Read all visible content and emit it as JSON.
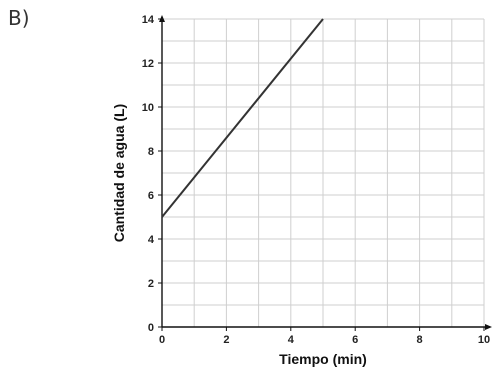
{
  "panel_label": "B)",
  "chart_data": {
    "type": "line",
    "title": "",
    "xlabel": "Tiempo (min)",
    "ylabel": "Cantidad de agua (L)",
    "xlim": [
      0,
      10
    ],
    "ylim": [
      0,
      14
    ],
    "x_ticks": [
      0,
      2,
      4,
      6,
      8,
      10
    ],
    "y_ticks": [
      0,
      2,
      4,
      6,
      8,
      10,
      12,
      14
    ],
    "x_tick_labels": [
      "0",
      "2",
      "4",
      "6",
      "8",
      "10"
    ],
    "y_tick_labels": [
      "0",
      "2",
      "4",
      "6",
      "8",
      "10",
      "12",
      "14"
    ],
    "grid": true,
    "series": [
      {
        "x": [
          0,
          5
        ],
        "y": [
          5,
          14
        ]
      }
    ],
    "colors": {
      "line": "#333333",
      "grid": "#cfcfcf",
      "axis": "#111111"
    }
  }
}
